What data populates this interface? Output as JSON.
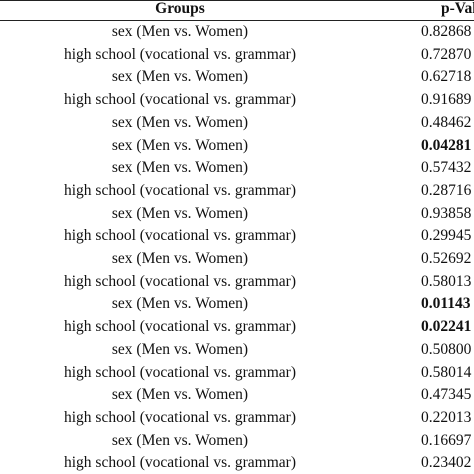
{
  "table": {
    "header": [
      "Groups",
      "p-Value"
    ],
    "rows": [
      {
        "group": "sex (Men vs. Women)",
        "p_value": "0.82868"
      },
      {
        "group": "high school (vocational vs. grammar)",
        "p_value": "0.72870"
      },
      {
        "group": "sex (Men vs. Women)",
        "p_value": "0.62718"
      },
      {
        "group": "high school (vocational vs. grammar)",
        "p_value": "0.91689"
      },
      {
        "group": "sex (Men vs. Women)",
        "p_value": "0.48462"
      },
      {
        "group": "sex (Men vs. Women)",
        "p_value": "0.04281",
        "bold": true
      },
      {
        "group": "sex (Men vs. Women)",
        "p_value": "0.57432"
      },
      {
        "group": "high school (vocational vs. grammar)",
        "p_value": "0.28716"
      },
      {
        "group": "sex (Men vs. Women)",
        "p_value": "0.93858"
      },
      {
        "group": "high school (vocational vs. grammar)",
        "p_value": "0.29945"
      },
      {
        "group": "sex (Men vs. Women)",
        "p_value": "0.52692"
      },
      {
        "group": "high school (vocational vs. grammar)",
        "p_value": "0.58013"
      },
      {
        "group": "sex (Men vs. Women)",
        "p_value": "0.01143",
        "bold": true
      },
      {
        "group": "high school (vocational vs. grammar)",
        "p_value": "0.02241",
        "bold": true
      },
      {
        "group": "sex (Men vs. Women)",
        "p_value": "0.50800"
      },
      {
        "group": "high school (vocational vs. grammar)",
        "p_value": "0.58014"
      },
      {
        "group": "sex (Men vs. Women)",
        "p_value": "0.47345"
      },
      {
        "group": "high school (vocational vs. grammar)",
        "p_value": "0.22013"
      },
      {
        "group": "sex (Men vs. Women)",
        "p_value": "0.16697"
      },
      {
        "group": "high school (vocational vs. grammar)",
        "p_value": "0.23402"
      }
    ]
  }
}
